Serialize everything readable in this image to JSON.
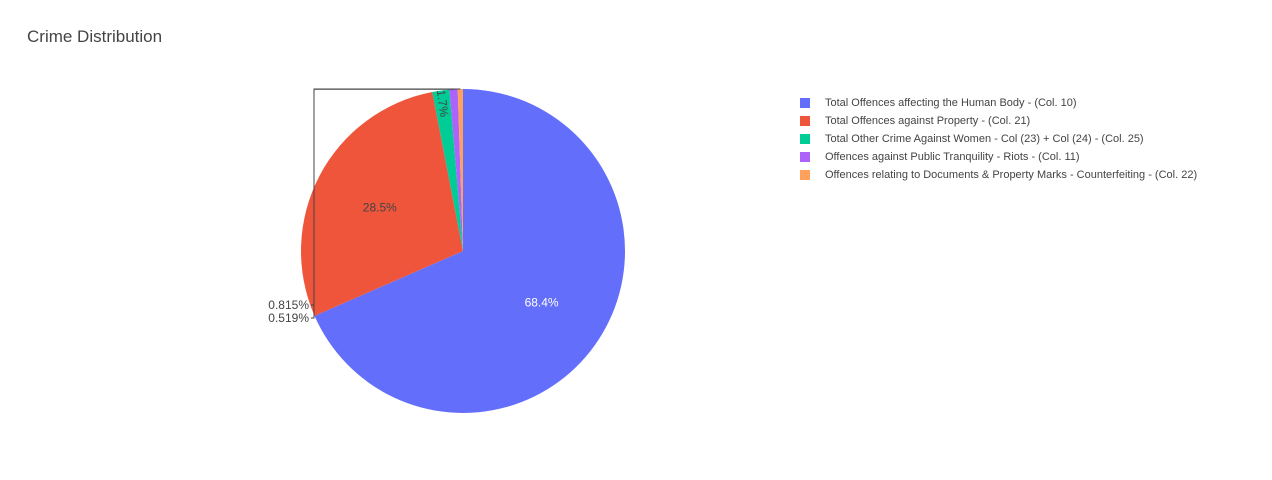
{
  "chart_data": {
    "type": "pie",
    "title": "Crime Distribution",
    "legend_position": "right",
    "slices": [
      {
        "name": "Total Offences affecting the Human Body - (Col. 10)",
        "percent": 68.4,
        "label": "68.4%",
        "color": "#636efa",
        "label_color": "#ffffff",
        "label_placement": "inside"
      },
      {
        "name": "Total Offences against Property - (Col. 21)",
        "percent": 28.5,
        "label": "28.5%",
        "color": "#ef553b",
        "label_color": "#444444",
        "label_placement": "inside"
      },
      {
        "name": "Total Other Crime Against Women - Col (23) + Col (24) - (Col. 25)",
        "percent": 1.7,
        "label": "1.7%",
        "color": "#00cc96",
        "label_color": "#444444",
        "label_placement": "inside"
      },
      {
        "name": "Offences against Public Tranquility - Riots - (Col. 11)",
        "percent": 0.815,
        "label": "0.815%",
        "color": "#ab63fa",
        "label_color": "#444444",
        "label_placement": "outside"
      },
      {
        "name": "Offences relating to Documents & Property Marks - Counterfeiting - (Col. 22)",
        "percent": 0.519,
        "label": "0.519%",
        "color": "#ffa15a",
        "label_color": "#444444",
        "label_placement": "outside"
      }
    ]
  }
}
